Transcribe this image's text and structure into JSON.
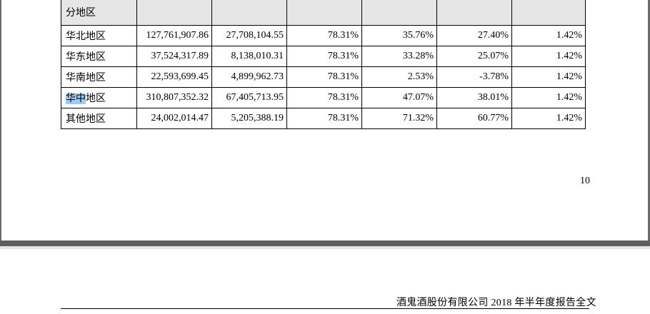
{
  "table": {
    "section_label": "分地区",
    "rows": [
      {
        "region": "华北地区",
        "col1": "127,761,907.86",
        "col2": "27,708,104.55",
        "col3": "78.31%",
        "col4": "35.76%",
        "col5": "27.40%",
        "col6": "1.42%"
      },
      {
        "region": "华东地区",
        "col1": "37,524,317.89",
        "col2": "8,138,010.31",
        "col3": "78.31%",
        "col4": "33.28%",
        "col5": "25.07%",
        "col6": "1.42%"
      },
      {
        "region": "华南地区",
        "col1": "22,593,699.45",
        "col2": "4,899,962.73",
        "col3": "78.31%",
        "col4": "2.53%",
        "col5": "-3.78%",
        "col6": "1.42%"
      },
      {
        "region_highlight": "华中",
        "region_rest": "地区",
        "col1": "310,807,352.32",
        "col2": "67,405,713.95",
        "col3": "78.31%",
        "col4": "47.07%",
        "col5": "38.01%",
        "col6": "1.42%"
      },
      {
        "region": "其他地区",
        "col1": "24,002,014.47",
        "col2": "5,205,388.19",
        "col3": "78.31%",
        "col4": "71.32%",
        "col5": "60.77%",
        "col6": "1.42%"
      }
    ]
  },
  "page_number": "10",
  "footer": {
    "title": "酒鬼酒股份有限公司 2018 年半年度报告全文"
  },
  "colors": {
    "highlight": "#9ecbf0",
    "section_bg": "#e6e6e6",
    "page_gap": "#5f5f5f"
  }
}
